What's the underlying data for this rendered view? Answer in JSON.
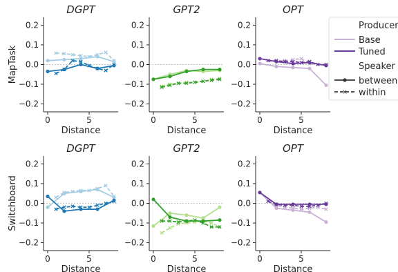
{
  "chart_data": [
    {
      "type": "line",
      "title": "DGPT",
      "ylabel": "MapTask",
      "xlabel": "Distance",
      "xlim": [
        -0.5,
        8.5
      ],
      "ylim": [
        -0.24,
        0.24
      ],
      "xticks": [
        0,
        5
      ],
      "yticks": [
        -0.2,
        -0.1,
        0.0,
        0.1,
        0.2
      ],
      "xtick_labels": [
        "0",
        "5"
      ],
      "ytick_labels": [
        "−0.2",
        "−0.1",
        "0.0",
        "0.1",
        "0.2"
      ],
      "colors": {
        "Base": "#a6cee3",
        "Tuned": "#1f78b4"
      },
      "series": [
        {
          "model": "Base",
          "speaker": "between",
          "x": [
            0,
            2,
            4,
            6,
            8
          ],
          "y": [
            0.02,
            0.025,
            0.03,
            0.04,
            0.015
          ]
        },
        {
          "model": "Base",
          "speaker": "within",
          "x": [
            1,
            2,
            3,
            4,
            5,
            6,
            7,
            8
          ],
          "y": [
            0.058,
            0.055,
            0.05,
            0.045,
            0.04,
            0.05,
            0.062,
            0.02
          ]
        },
        {
          "model": "Tuned",
          "speaker": "between",
          "x": [
            0,
            2,
            4,
            6,
            8
          ],
          "y": [
            -0.035,
            -0.025,
            0.0,
            -0.02,
            -0.005
          ]
        },
        {
          "model": "Tuned",
          "speaker": "within",
          "x": [
            1,
            2,
            3,
            4,
            5,
            6,
            7,
            8
          ],
          "y": [
            -0.045,
            -0.025,
            0.02,
            0.015,
            -0.005,
            -0.02,
            -0.03,
            0.0
          ]
        }
      ]
    },
    {
      "type": "line",
      "title": "GPT2",
      "ylabel": "",
      "xlabel": "Distance",
      "xlim": [
        -0.5,
        8.5
      ],
      "ylim": [
        -0.24,
        0.24
      ],
      "xticks": [
        0,
        5
      ],
      "yticks": [
        -0.2,
        -0.1,
        0.0,
        0.1,
        0.2
      ],
      "xtick_labels": [
        "0",
        "5"
      ],
      "ytick_labels": [
        "−0.2",
        "−0.1",
        "0.0",
        "0.1",
        "0.2"
      ],
      "colors": {
        "Base": "#b2df8a",
        "Tuned": "#33a02c"
      },
      "series": [
        {
          "model": "Base",
          "speaker": "between",
          "x": [
            0,
            2,
            4,
            6,
            8
          ],
          "y": [
            -0.075,
            -0.05,
            -0.03,
            -0.035,
            -0.03
          ]
        },
        {
          "model": "Base",
          "speaker": "within",
          "x": [
            1,
            2,
            3,
            4,
            5,
            6,
            7,
            8
          ],
          "y": [
            -0.11,
            -0.1,
            -0.095,
            -0.09,
            -0.09,
            -0.085,
            -0.075,
            -0.07
          ]
        },
        {
          "model": "Tuned",
          "speaker": "between",
          "x": [
            0,
            2,
            4,
            6,
            8
          ],
          "y": [
            -0.075,
            -0.06,
            -0.035,
            -0.025,
            -0.025
          ]
        },
        {
          "model": "Tuned",
          "speaker": "within",
          "x": [
            1,
            2,
            3,
            4,
            5,
            6,
            7,
            8
          ],
          "y": [
            -0.115,
            -0.105,
            -0.095,
            -0.095,
            -0.09,
            -0.085,
            -0.08,
            -0.075
          ]
        }
      ]
    },
    {
      "type": "line",
      "title": "OPT",
      "ylabel": "",
      "xlabel": "Distance",
      "xlim": [
        -0.5,
        8.5
      ],
      "ylim": [
        -0.24,
        0.24
      ],
      "xticks": [
        0,
        5
      ],
      "yticks": [
        -0.2,
        -0.1,
        0.0,
        0.1,
        0.2
      ],
      "xtick_labels": [
        "0",
        "5"
      ],
      "ytick_labels": [
        "−0.2",
        "−0.1",
        "0.0",
        "0.1",
        "0.2"
      ],
      "colors": {
        "Base": "#cab2d6",
        "Tuned": "#6a3d9a"
      },
      "series": [
        {
          "model": "Base",
          "speaker": "between",
          "x": [
            0,
            2,
            4,
            6,
            8
          ],
          "y": [
            0.005,
            -0.01,
            -0.015,
            -0.02,
            -0.105
          ]
        },
        {
          "model": "Base",
          "speaker": "within",
          "x": [
            1,
            2,
            3,
            4,
            5,
            6,
            7,
            8
          ],
          "y": [
            0.02,
            0.015,
            0.02,
            0.025,
            0.03,
            0.005,
            0.0,
            0.0
          ]
        },
        {
          "model": "Tuned",
          "speaker": "between",
          "x": [
            0,
            2,
            4,
            6,
            8
          ],
          "y": [
            0.03,
            0.015,
            0.005,
            0.01,
            -0.005
          ]
        },
        {
          "model": "Tuned",
          "speaker": "within",
          "x": [
            1,
            2,
            3,
            4,
            5,
            6,
            7,
            8
          ],
          "y": [
            0.02,
            0.02,
            0.015,
            0.015,
            0.01,
            0.015,
            0.0,
            0.0
          ]
        }
      ]
    },
    {
      "type": "line",
      "title": "DGPT",
      "ylabel": "Switchboard",
      "xlabel": "Distance",
      "xlim": [
        -0.5,
        8.5
      ],
      "ylim": [
        -0.24,
        0.24
      ],
      "xticks": [
        0,
        5
      ],
      "yticks": [
        -0.2,
        -0.1,
        0.0,
        0.1,
        0.2
      ],
      "xtick_labels": [
        "0",
        "5"
      ],
      "ytick_labels": [
        "−0.2",
        "−0.1",
        "0.0",
        "0.1",
        "0.2"
      ],
      "colors": {
        "Base": "#a6cee3",
        "Tuned": "#1f78b4"
      },
      "series": [
        {
          "model": "Base",
          "speaker": "between",
          "x": [
            0,
            2,
            4,
            6,
            8
          ],
          "y": [
            -0.02,
            0.05,
            0.06,
            0.07,
            0.03
          ]
        },
        {
          "model": "Base",
          "speaker": "within",
          "x": [
            1,
            2,
            3,
            4,
            5,
            6,
            7,
            8
          ],
          "y": [
            0.03,
            0.055,
            0.06,
            0.065,
            0.065,
            0.075,
            0.09,
            0.035
          ]
        },
        {
          "model": "Tuned",
          "speaker": "between",
          "x": [
            0,
            2,
            4,
            6,
            8
          ],
          "y": [
            0.035,
            -0.04,
            -0.03,
            -0.03,
            0.015
          ]
        },
        {
          "model": "Tuned",
          "speaker": "within",
          "x": [
            1,
            2,
            3,
            4,
            5,
            6,
            7,
            8
          ],
          "y": [
            -0.03,
            -0.02,
            -0.015,
            -0.02,
            -0.02,
            -0.01,
            0.0,
            0.01
          ]
        }
      ]
    },
    {
      "type": "line",
      "title": "GPT2",
      "ylabel": "",
      "xlabel": "Distance",
      "xlim": [
        -0.5,
        8.5
      ],
      "ylim": [
        -0.24,
        0.24
      ],
      "xticks": [
        0,
        5
      ],
      "yticks": [
        -0.2,
        -0.1,
        0.0,
        0.1,
        0.2
      ],
      "xtick_labels": [
        "0",
        "5"
      ],
      "ytick_labels": [
        "−0.2",
        "−0.1",
        "0.0",
        "0.1",
        "0.2"
      ],
      "colors": {
        "Base": "#b2df8a",
        "Tuned": "#33a02c"
      },
      "series": [
        {
          "model": "Base",
          "speaker": "between",
          "x": [
            0,
            2,
            4,
            6,
            8
          ],
          "y": [
            -0.115,
            -0.05,
            -0.06,
            -0.075,
            -0.02
          ]
        },
        {
          "model": "Base",
          "speaker": "within",
          "x": [
            1,
            2,
            3,
            4,
            5,
            6,
            7,
            8
          ],
          "y": [
            -0.15,
            -0.125,
            -0.105,
            -0.1,
            -0.095,
            -0.09,
            -0.1,
            -0.12
          ]
        },
        {
          "model": "Tuned",
          "speaker": "between",
          "x": [
            0,
            2,
            4,
            6,
            8
          ],
          "y": [
            0.02,
            -0.07,
            -0.09,
            -0.09,
            -0.085
          ]
        },
        {
          "model": "Tuned",
          "speaker": "within",
          "x": [
            1,
            2,
            3,
            4,
            5,
            6,
            7,
            8
          ],
          "y": [
            -0.09,
            -0.09,
            -0.095,
            -0.09,
            -0.085,
            -0.1,
            -0.12,
            -0.12
          ]
        }
      ]
    },
    {
      "type": "line",
      "title": "OPT",
      "ylabel": "",
      "xlabel": "Distance",
      "xlim": [
        -0.5,
        8.5
      ],
      "ylim": [
        -0.24,
        0.24
      ],
      "xticks": [
        0,
        5
      ],
      "yticks": [
        -0.2,
        -0.1,
        0.0,
        0.1,
        0.2
      ],
      "xtick_labels": [
        "0",
        "5"
      ],
      "ytick_labels": [
        "−0.2",
        "−0.1",
        "0.0",
        "0.1",
        "0.2"
      ],
      "colors": {
        "Base": "#cab2d6",
        "Tuned": "#6a3d9a"
      },
      "series": [
        {
          "model": "Base",
          "speaker": "between",
          "x": [
            0,
            2,
            4,
            6,
            8
          ],
          "y": [
            0.055,
            -0.025,
            -0.035,
            -0.045,
            -0.095
          ]
        },
        {
          "model": "Base",
          "speaker": "within",
          "x": [
            1,
            2,
            3,
            4,
            5,
            6,
            7,
            8
          ],
          "y": [
            0.01,
            -0.01,
            -0.02,
            -0.025,
            -0.03,
            -0.025,
            -0.02,
            -0.03
          ]
        },
        {
          "model": "Tuned",
          "speaker": "between",
          "x": [
            0,
            2,
            4,
            6,
            8
          ],
          "y": [
            0.055,
            -0.005,
            -0.005,
            -0.005,
            -0.005
          ]
        },
        {
          "model": "Tuned",
          "speaker": "within",
          "x": [
            1,
            2,
            3,
            4,
            5,
            6,
            7,
            8
          ],
          "y": [
            0.01,
            -0.005,
            -0.01,
            -0.01,
            -0.015,
            -0.015,
            -0.01,
            0.0
          ]
        }
      ]
    }
  ],
  "legend": {
    "producer_title": "Producer",
    "base_label": "Base",
    "tuned_label": "Tuned",
    "speaker_title": "Speaker",
    "between_label": "between",
    "within_label": "within",
    "base_color": "#cab2d6",
    "tuned_color": "#6a3d9a",
    "speaker_color": "#333333"
  }
}
